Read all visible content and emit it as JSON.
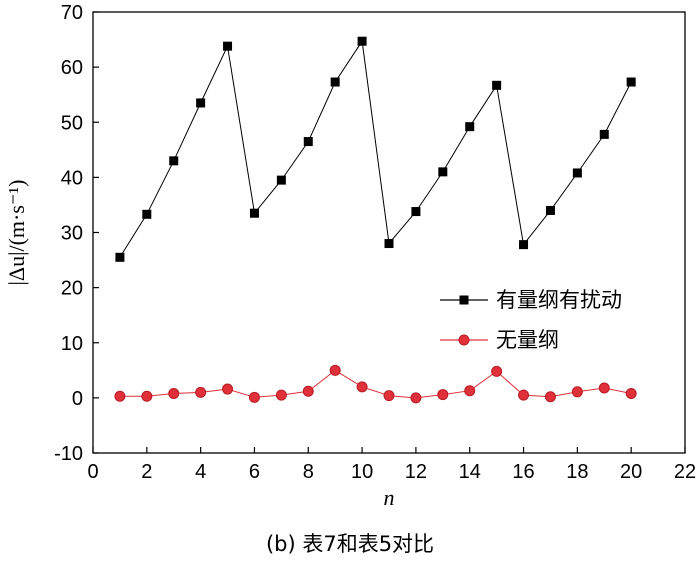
{
  "caption": "(b) 表7和表5对比",
  "chart_data": {
    "type": "line",
    "xlabel": "n",
    "ylabel": "|Δu|/(m·s⁻¹)",
    "xlim": [
      0,
      22
    ],
    "ylim": [
      -10,
      70
    ],
    "xticks": [
      0,
      2,
      4,
      6,
      8,
      10,
      12,
      14,
      16,
      18,
      20,
      22
    ],
    "yticks": [
      -10,
      0,
      10,
      20,
      30,
      40,
      50,
      60,
      70
    ],
    "grid": false,
    "legend_position": "right-middle",
    "x": [
      1,
      2,
      3,
      4,
      5,
      6,
      7,
      8,
      9,
      10,
      11,
      12,
      13,
      14,
      15,
      16,
      17,
      18,
      19,
      20
    ],
    "series": [
      {
        "name": "有量纲有扰动",
        "color": "#000000",
        "marker": "square",
        "values": [
          25.5,
          33.3,
          43.0,
          53.5,
          63.8,
          33.5,
          39.5,
          46.5,
          57.3,
          64.7,
          28.0,
          33.8,
          41.0,
          49.2,
          56.7,
          27.8,
          34.0,
          40.8,
          47.8,
          57.3
        ]
      },
      {
        "name": "无量纲",
        "color": "#e0303a",
        "marker": "circle",
        "values": [
          0.3,
          0.3,
          0.8,
          1.0,
          1.6,
          0.1,
          0.5,
          1.2,
          5.0,
          2.0,
          0.4,
          0.0,
          0.6,
          1.3,
          4.8,
          0.5,
          0.2,
          1.1,
          1.8,
          0.8
        ]
      }
    ]
  }
}
